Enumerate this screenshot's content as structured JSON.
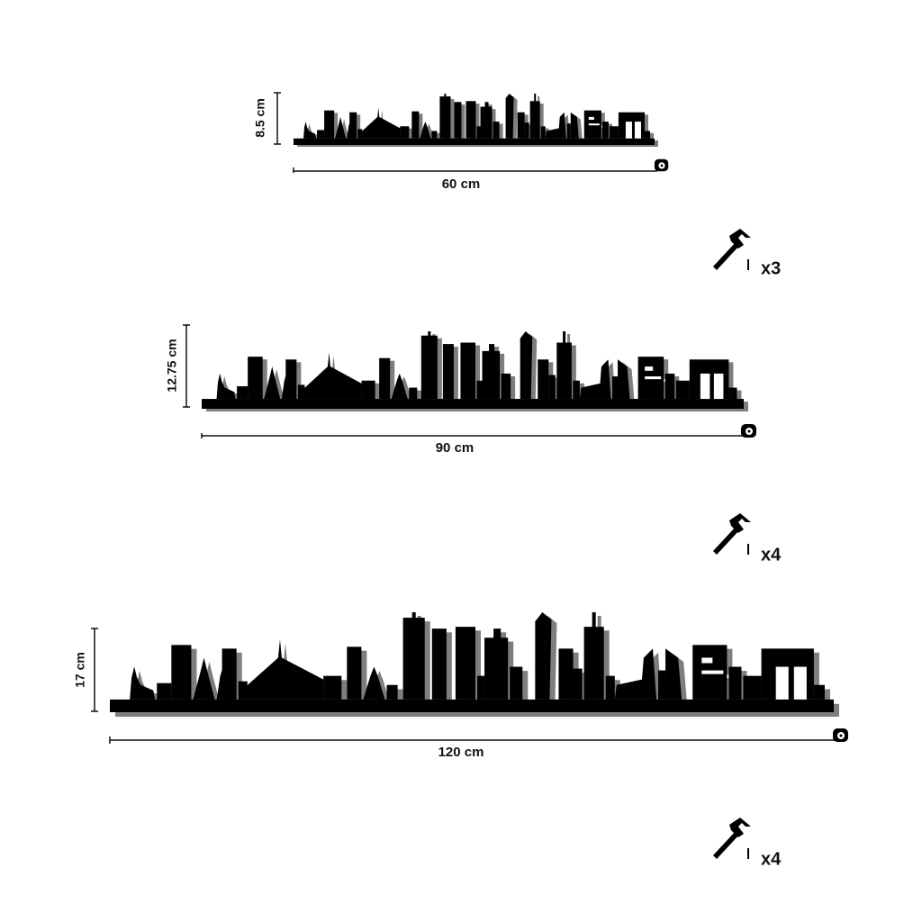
{
  "sizes": [
    {
      "height": "8.5 cm",
      "width": "60 cm",
      "nails": "x3"
    },
    {
      "height": "12.75 cm",
      "width": "90 cm",
      "nails": "x4"
    },
    {
      "height": "17 cm",
      "width": "120 cm",
      "nails": "x4"
    }
  ]
}
